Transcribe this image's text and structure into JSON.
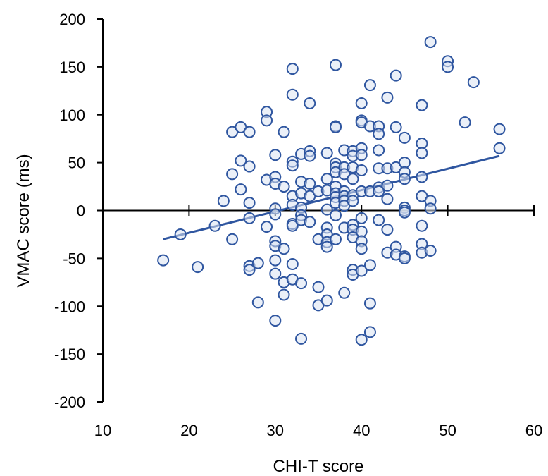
{
  "chart_data": {
    "type": "scatter",
    "xlabel": "CHI-T score",
    "ylabel": "VMAC score (ms)",
    "xlim": [
      10,
      60
    ],
    "ylim": [
      -200,
      200
    ],
    "x_ticks": [
      10,
      20,
      30,
      40,
      50,
      60
    ],
    "y_ticks": [
      200,
      150,
      100,
      50,
      0,
      -50,
      -100,
      -150,
      -200
    ],
    "x_tick_labels": [
      "10",
      "20",
      "30",
      "40",
      "50",
      "60"
    ],
    "y_tick_labels": [
      "200",
      "150",
      "100",
      "50",
      "0",
      "-50",
      "-100",
      "-150",
      "-200"
    ],
    "grid": false,
    "marker": "open-circle",
    "colors": {
      "points": "#2f56a0",
      "trendline": "#2f56a0",
      "axes": "#000000"
    },
    "series": [
      {
        "points": [
          [
            17,
            -52
          ],
          [
            19,
            -25
          ],
          [
            21,
            -59
          ],
          [
            23,
            -16
          ],
          [
            24,
            10
          ],
          [
            25,
            82
          ],
          [
            25,
            38
          ],
          [
            25,
            -30
          ],
          [
            26,
            87
          ],
          [
            26,
            52
          ],
          [
            26,
            22
          ],
          [
            27,
            82
          ],
          [
            27,
            46
          ],
          [
            27,
            8
          ],
          [
            27,
            -8
          ],
          [
            27,
            -58
          ],
          [
            27,
            -62
          ],
          [
            28,
            -55
          ],
          [
            28,
            -96
          ],
          [
            29,
            103
          ],
          [
            29,
            94
          ],
          [
            29,
            32
          ],
          [
            29,
            -17
          ],
          [
            30,
            58
          ],
          [
            30,
            35
          ],
          [
            30,
            28
          ],
          [
            30,
            2
          ],
          [
            30,
            -4
          ],
          [
            30,
            -32
          ],
          [
            30,
            -37
          ],
          [
            30,
            -52
          ],
          [
            30,
            -66
          ],
          [
            30,
            -115
          ],
          [
            31,
            82
          ],
          [
            31,
            25
          ],
          [
            31,
            -40
          ],
          [
            31,
            -75
          ],
          [
            31,
            -88
          ],
          [
            32,
            148
          ],
          [
            32,
            121
          ],
          [
            32,
            51
          ],
          [
            32,
            47
          ],
          [
            32,
            15
          ],
          [
            32,
            6
          ],
          [
            32,
            -14
          ],
          [
            32,
            -16
          ],
          [
            32,
            -56
          ],
          [
            32,
            -72
          ],
          [
            33,
            59
          ],
          [
            33,
            30
          ],
          [
            33,
            18
          ],
          [
            33,
            3
          ],
          [
            33,
            -5
          ],
          [
            33,
            -10
          ],
          [
            33,
            -76
          ],
          [
            33,
            -134
          ],
          [
            34,
            112
          ],
          [
            34,
            62
          ],
          [
            34,
            57
          ],
          [
            34,
            28
          ],
          [
            34,
            15
          ],
          [
            34,
            -12
          ],
          [
            35,
            20
          ],
          [
            35,
            -30
          ],
          [
            35,
            -80
          ],
          [
            35,
            -99
          ],
          [
            36,
            60
          ],
          [
            36,
            33
          ],
          [
            36,
            21
          ],
          [
            36,
            1
          ],
          [
            36,
            -18
          ],
          [
            36,
            -25
          ],
          [
            36,
            -33
          ],
          [
            36,
            -38
          ],
          [
            36,
            -94
          ],
          [
            37,
            152
          ],
          [
            37,
            88
          ],
          [
            37,
            87
          ],
          [
            37,
            49
          ],
          [
            37,
            45
          ],
          [
            37,
            40
          ],
          [
            37,
            25
          ],
          [
            37,
            18
          ],
          [
            37,
            14
          ],
          [
            37,
            8
          ],
          [
            37,
            -5
          ],
          [
            37,
            -30
          ],
          [
            38,
            63
          ],
          [
            38,
            45
          ],
          [
            38,
            38
          ],
          [
            38,
            20
          ],
          [
            38,
            15
          ],
          [
            38,
            10
          ],
          [
            38,
            5
          ],
          [
            38,
            -18
          ],
          [
            38,
            -86
          ],
          [
            39,
            62
          ],
          [
            39,
            57
          ],
          [
            39,
            45
          ],
          [
            39,
            33
          ],
          [
            39,
            16
          ],
          [
            39,
            10
          ],
          [
            39,
            -15
          ],
          [
            39,
            -20
          ],
          [
            39,
            -28
          ],
          [
            39,
            -62
          ],
          [
            39,
            -67
          ],
          [
            40,
            112
          ],
          [
            40,
            94
          ],
          [
            40,
            92
          ],
          [
            40,
            65
          ],
          [
            40,
            58
          ],
          [
            40,
            42
          ],
          [
            40,
            20
          ],
          [
            40,
            -8
          ],
          [
            40,
            -22
          ],
          [
            40,
            -32
          ],
          [
            40,
            -40
          ],
          [
            40,
            -63
          ],
          [
            40,
            -135
          ],
          [
            41,
            131
          ],
          [
            41,
            88
          ],
          [
            41,
            20
          ],
          [
            41,
            -57
          ],
          [
            41,
            -97
          ],
          [
            41,
            -127
          ],
          [
            42,
            88
          ],
          [
            42,
            80
          ],
          [
            42,
            63
          ],
          [
            42,
            44
          ],
          [
            42,
            24
          ],
          [
            42,
            20
          ],
          [
            42,
            -10
          ],
          [
            43,
            118
          ],
          [
            43,
            44
          ],
          [
            43,
            26
          ],
          [
            43,
            12
          ],
          [
            43,
            -20
          ],
          [
            43,
            -44
          ],
          [
            44,
            141
          ],
          [
            44,
            87
          ],
          [
            44,
            45
          ],
          [
            44,
            -38
          ],
          [
            44,
            -46
          ],
          [
            45,
            76
          ],
          [
            45,
            50
          ],
          [
            45,
            40
          ],
          [
            45,
            33
          ],
          [
            45,
            3
          ],
          [
            45,
            0
          ],
          [
            45,
            -2
          ],
          [
            45,
            -48
          ],
          [
            45,
            -50
          ],
          [
            47,
            110
          ],
          [
            47,
            70
          ],
          [
            47,
            60
          ],
          [
            47,
            35
          ],
          [
            47,
            15
          ],
          [
            47,
            -16
          ],
          [
            47,
            -35
          ],
          [
            47,
            -44
          ],
          [
            48,
            176
          ],
          [
            48,
            10
          ],
          [
            48,
            2
          ],
          [
            48,
            -42
          ],
          [
            50,
            156
          ],
          [
            50,
            150
          ],
          [
            52,
            92
          ],
          [
            53,
            134
          ],
          [
            56,
            85
          ],
          [
            56,
            65
          ]
        ]
      }
    ],
    "trendline": {
      "x": [
        17,
        56
      ],
      "y": [
        -30,
        57
      ]
    }
  }
}
